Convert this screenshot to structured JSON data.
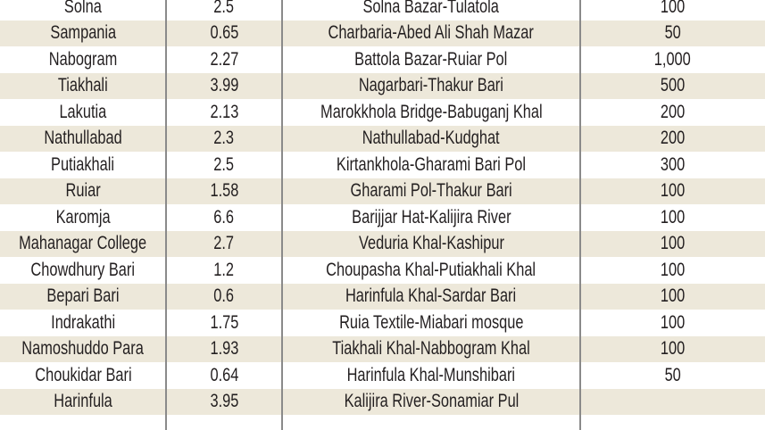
{
  "table": {
    "rows": [
      [
        "Solna",
        "2.5",
        "Solna Bazar-Tulatola",
        "100"
      ],
      [
        "Sampania",
        "0.65",
        "Charbaria-Abed Ali Shah Mazar",
        "50"
      ],
      [
        "Nabogram",
        "2.27",
        "Battola Bazar-Ruiar Pol",
        "1,000"
      ],
      [
        "Tiakhali",
        "3.99",
        "Nagarbari-Thakur Bari",
        "500"
      ],
      [
        "Lakutia",
        "2.13",
        "Marokkhola Bridge-Babuganj Khal",
        "200"
      ],
      [
        "Nathullabad",
        "2.3",
        "Nathullabad-Kudghat",
        "200"
      ],
      [
        "Putiakhali",
        "2.5",
        "Kirtankhola-Gharami Bari Pol",
        "300"
      ],
      [
        "Ruiar",
        "1.58",
        "Gharami Pol-Thakur Bari",
        "100"
      ],
      [
        "Karomja",
        "6.6",
        "Barijjar Hat-Kalijira River",
        "100"
      ],
      [
        "Mahanagar College",
        "2.7",
        "Veduria Khal-Kashipur",
        "100"
      ],
      [
        "Chowdhury Bari",
        "1.2",
        "Choupasha Khal-Putiakhali Khal",
        "100"
      ],
      [
        "Bepari Bari",
        "0.6",
        "Harinfula Khal-Sardar Bari",
        "100"
      ],
      [
        "Indrakathi",
        "1.75",
        "Ruia Textile-Miabari mosque",
        "100"
      ],
      [
        "Namoshuddo Para",
        "1.93",
        "Tiakhali Khal-Nabbogram Khal",
        "100"
      ],
      [
        "Choukidar Bari",
        "0.64",
        "Harinfula Khal-Munshibari",
        "50"
      ],
      [
        "Harinfula",
        "3.95",
        "Kalijira River-Sonamiar Pul",
        ""
      ]
    ]
  },
  "colors": {
    "stripe": "#ede8da",
    "divider": "#8a8a8a",
    "text": "#231f20"
  }
}
